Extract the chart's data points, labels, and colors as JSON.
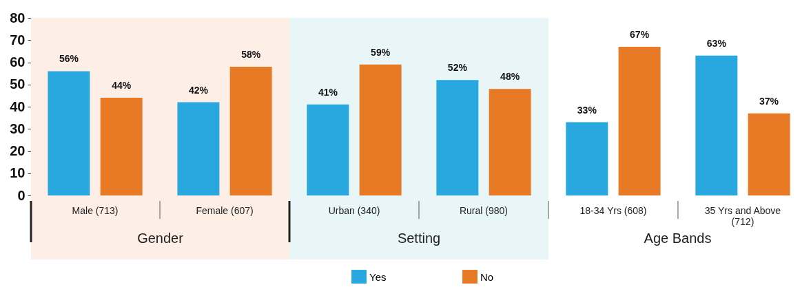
{
  "chart_data": {
    "type": "bar",
    "categories": [
      "Male (713)",
      "Female (607)",
      "Urban (340)",
      "Rural (980)",
      "18-34 Yrs (608)",
      "35 Yrs and Above (712)"
    ],
    "series": [
      {
        "name": "Yes",
        "color": "#29a8e0",
        "values": [
          56,
          42,
          41,
          52,
          33,
          63
        ],
        "value_labels": [
          "56%",
          "42%",
          "41%",
          "52%",
          "33%",
          "63%"
        ]
      },
      {
        "name": "No",
        "color": "#e87a25",
        "values": [
          44,
          58,
          59,
          48,
          67,
          37
        ],
        "value_labels": [
          "44%",
          "58%",
          "59%",
          "48%",
          "67%",
          "37%"
        ]
      }
    ],
    "ylim": [
      0,
      80
    ],
    "yticks": [
      0,
      10,
      20,
      30,
      40,
      50,
      60,
      70,
      80
    ],
    "grid": false,
    "legend": "bottom",
    "bands": [
      {
        "axis": "x",
        "from": "Male (713)",
        "to": "Female (607)",
        "label": "Gender",
        "color": "#fdefe6"
      },
      {
        "axis": "x",
        "from": "Urban (340)",
        "to": "Rural (980)",
        "label": "Setting",
        "color": "#e9f6f8"
      }
    ],
    "annotations": [
      "Age Bands"
    ]
  }
}
